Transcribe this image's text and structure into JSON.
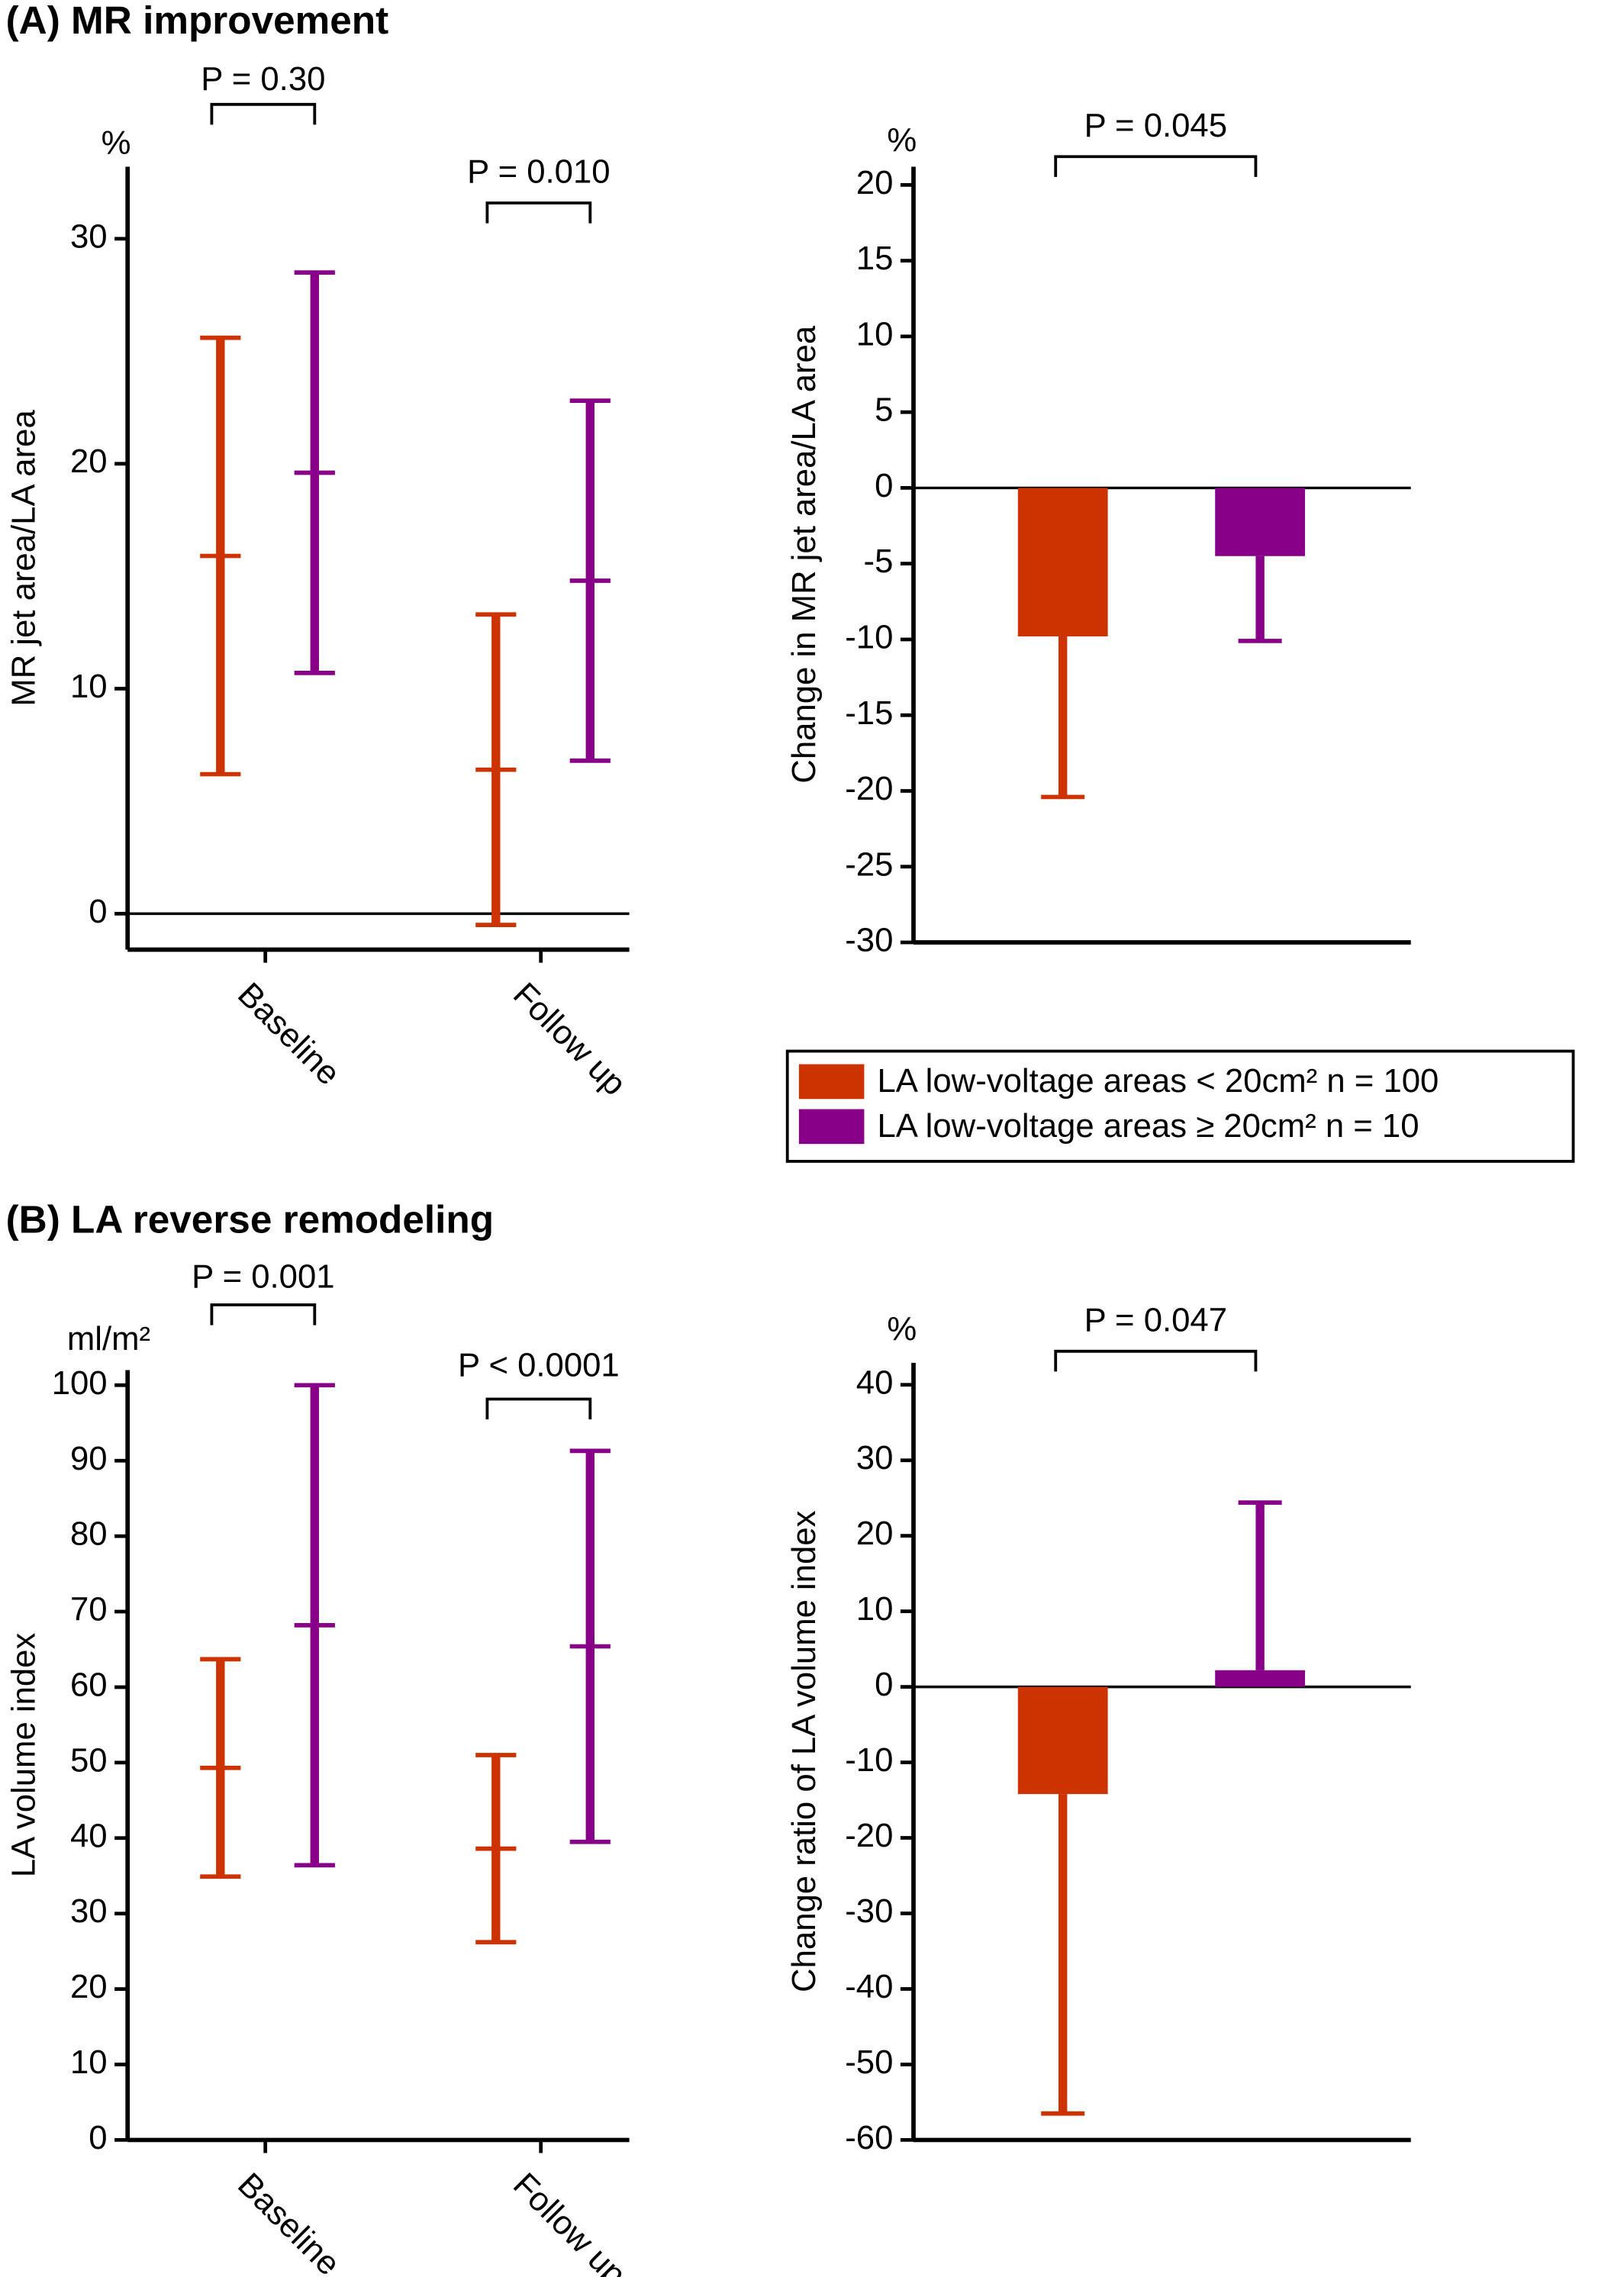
{
  "panel_titles": [
    "(A) MR improvement",
    "(B) LA reverse remodeling"
  ],
  "legend": [
    {
      "name": "LA low-voltage areas < 20cm² n = 100",
      "color": "#cc3300"
    },
    {
      "name": "LA low-voltage areas ≥ 20cm² n = 10",
      "color": "#880088"
    }
  ],
  "chart_data": [
    {
      "type": "errorbar",
      "unit": "%",
      "ylabel": "MR jet area/LA area",
      "categories": [
        "Baseline",
        "Follow up"
      ],
      "series": [
        {
          "color": "#cc3300",
          "values": [
            15.9,
            6.4
          ],
          "errors": [
            9.7,
            6.9
          ]
        },
        {
          "color": "#880088",
          "values": [
            19.6,
            14.8
          ],
          "errors": [
            8.9,
            8.0
          ]
        }
      ],
      "ylim": [
        -1.6,
        33.2
      ],
      "yticks": [
        0,
        10,
        20,
        30
      ],
      "reference_line": 0,
      "annotations": [
        "P = 0.30",
        "P = 0.010"
      ]
    },
    {
      "type": "bar",
      "unit": "%",
      "ylabel": "Change in MR jet area/LA area",
      "series": [
        {
          "color": "#cc3300",
          "values": [
            -9.8
          ],
          "errors": [
            10.6
          ]
        },
        {
          "color": "#880088",
          "values": [
            -4.5
          ],
          "errors": [
            5.6
          ]
        }
      ],
      "ylim": [
        -30,
        21.2
      ],
      "yticks": [
        -30,
        -25,
        -20,
        -15,
        -10,
        -5,
        0,
        5,
        10,
        15,
        20
      ],
      "reference_line": 0,
      "annotations": [
        "P = 0.045"
      ]
    },
    {
      "type": "errorbar",
      "unit": "ml/m²",
      "ylabel": "LA volume index",
      "categories": [
        "Baseline",
        "Follow up"
      ],
      "series": [
        {
          "color": "#cc3300",
          "values": [
            49.3,
            38.6
          ],
          "errors": [
            14.4,
            12.4
          ]
        },
        {
          "color": "#880088",
          "values": [
            68.2,
            65.4
          ],
          "errors": [
            31.8,
            25.9
          ]
        }
      ],
      "ylim": [
        0,
        102
      ],
      "yticks": [
        0,
        10,
        20,
        30,
        40,
        50,
        60,
        70,
        80,
        90,
        100
      ],
      "annotations": [
        "P = 0.001",
        "P < 0.0001"
      ]
    },
    {
      "type": "bar",
      "unit": "%",
      "ylabel": "Change ratio of LA volume index",
      "series": [
        {
          "color": "#cc3300",
          "values": [
            -14.2
          ],
          "errors": [
            42.3
          ]
        },
        {
          "color": "#880088",
          "values": [
            2.2
          ],
          "errors": [
            22.2
          ]
        }
      ],
      "ylim": [
        -60,
        42.9
      ],
      "yticks": [
        -60,
        -50,
        -40,
        -30,
        -20,
        -10,
        0,
        10,
        20,
        30,
        40
      ],
      "reference_line": 0,
      "annotations": [
        "P = 0.047"
      ]
    }
  ]
}
